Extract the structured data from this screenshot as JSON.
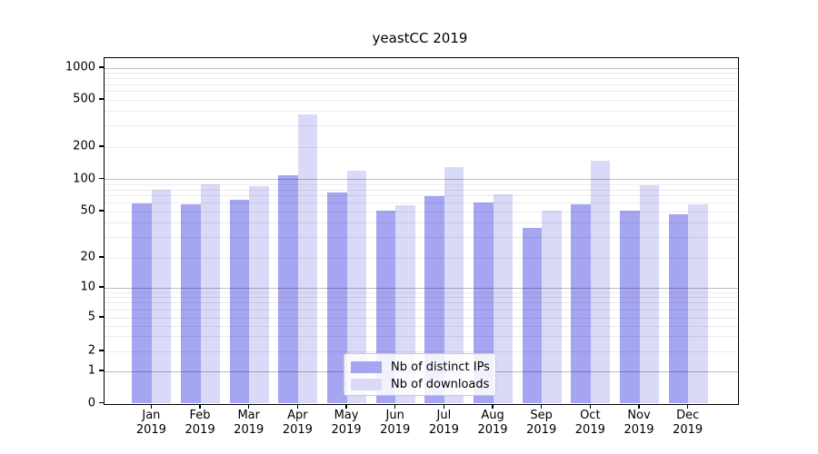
{
  "title": "yeastCC 2019",
  "chart_data": {
    "type": "bar",
    "title": "yeastCC 2019",
    "categories": [
      "Jan",
      "Feb",
      "Mar",
      "Apr",
      "May",
      "Jun",
      "Jul",
      "Aug",
      "Sep",
      "Oct",
      "Nov",
      "Dec"
    ],
    "year_label": "2019",
    "series": [
      {
        "name": "Nb of distinct IPs",
        "color": "#a5a5f1",
        "values": [
          60,
          58,
          65,
          110,
          76,
          51,
          70,
          61,
          36,
          58,
          51,
          47
        ]
      },
      {
        "name": "Nb of downloads",
        "color": "#d9d9f8",
        "values": [
          80,
          90,
          87,
          380,
          120,
          57,
          130,
          73,
          51,
          150,
          88,
          58
        ]
      }
    ],
    "xlabel": "",
    "ylabel": "",
    "yscale": "symlog",
    "y_ticks": [
      0,
      1,
      2,
      5,
      10,
      20,
      50,
      100,
      200,
      500,
      1000
    ],
    "ylim": [
      0,
      1200
    ],
    "grid": "both",
    "legend_position": "lower center"
  }
}
